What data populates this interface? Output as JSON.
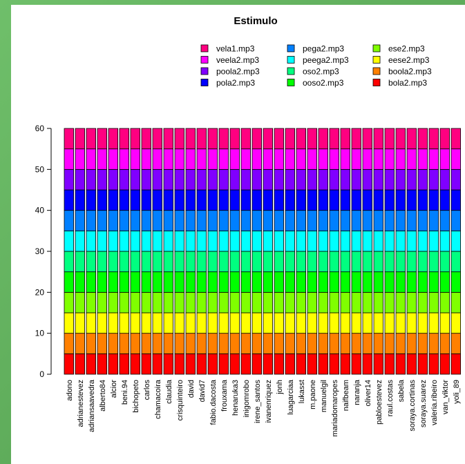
{
  "chart_data": {
    "type": "bar",
    "stacked": true,
    "title": "Estimulo",
    "xlabel": "",
    "ylabel": "",
    "ylim": [
      0,
      60
    ],
    "yticks": [
      0,
      10,
      20,
      30,
      40,
      50,
      60
    ],
    "legend_position": "top-right",
    "categories": [
      "adono",
      "adrianestevez",
      "adriansaavedra",
      "alberto84",
      "alcior",
      "beni.94",
      "bichopeto",
      "carlos",
      "chamacoira",
      "claudia",
      "crisquinteiro",
      "david",
      "david7",
      "fabio.dacosta",
      "frouxama",
      "henaruka3",
      "inigomrobo",
      "irene_santos",
      "ivanenriquez",
      "jonh",
      "luagarciaa",
      "lukasst",
      "m.paone",
      "manuelgil",
      "mariadomaropes",
      "naifbeam",
      "naranja",
      "oliver14",
      "pabloestevez",
      "raul.costas",
      "sabela",
      "soraya.cortinas",
      "soraya.suarez",
      "valeria.ribeiro",
      "van_viktor",
      "yoli_89"
    ],
    "series": [
      {
        "name": "bola2.mp3",
        "color": "#ff0000",
        "value_each": 5
      },
      {
        "name": "boola2.mp3",
        "color": "#ff8000",
        "value_each": 5
      },
      {
        "name": "eese2.mp3",
        "color": "#ffff00",
        "value_each": 5
      },
      {
        "name": "ese2.mp3",
        "color": "#80ff00",
        "value_each": 5
      },
      {
        "name": "ooso2.mp3",
        "color": "#00ff00",
        "value_each": 5
      },
      {
        "name": "oso2.mp3",
        "color": "#00ff80",
        "value_each": 5
      },
      {
        "name": "peega2.mp3",
        "color": "#00ffff",
        "value_each": 5
      },
      {
        "name": "pega2.mp3",
        "color": "#0080ff",
        "value_each": 5
      },
      {
        "name": "pola2.mp3",
        "color": "#0000ff",
        "value_each": 5
      },
      {
        "name": "poola2.mp3",
        "color": "#8000ff",
        "value_each": 5
      },
      {
        "name": "veela2.mp3",
        "color": "#ff00ff",
        "value_each": 5
      },
      {
        "name": "vela1.mp3",
        "color": "#ff0080",
        "value_each": 5
      }
    ],
    "legend_order": [
      "vela1.mp3",
      "veela2.mp3",
      "poola2.mp3",
      "pola2.mp3",
      "pega2.mp3",
      "peega2.mp3",
      "oso2.mp3",
      "ooso2.mp3",
      "ese2.mp3",
      "eese2.mp3",
      "boola2.mp3",
      "bola2.mp3"
    ]
  }
}
